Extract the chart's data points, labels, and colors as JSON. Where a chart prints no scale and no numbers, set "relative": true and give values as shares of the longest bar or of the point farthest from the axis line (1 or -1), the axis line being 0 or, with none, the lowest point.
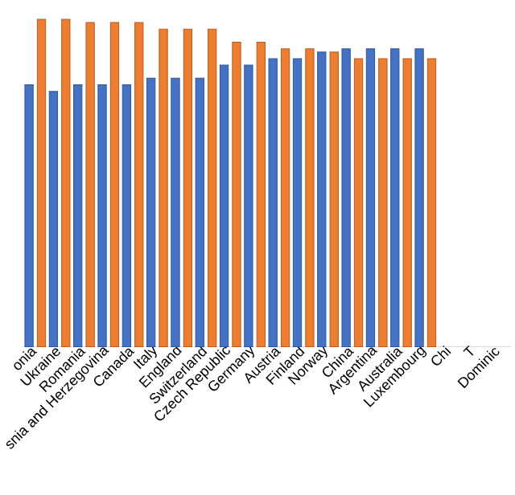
{
  "chart_data": {
    "type": "bar",
    "relative": true,
    "categories": [
      "onia",
      "Ukraine",
      "Romania",
      "snia and Herzegovina",
      "Canada",
      "Italy",
      "England",
      "Switzerland",
      "Czech Republic",
      "Germany",
      "Austria",
      "Finland",
      "Norway",
      "China",
      "Argentina",
      "Australia",
      "Luxembourg",
      "Chi",
      "T",
      "Dominic"
    ],
    "series": [
      {
        "color": "#4472c4",
        "values": [
          0.8,
          0.78,
          0.8,
          0.8,
          0.8,
          0.82,
          0.82,
          0.82,
          0.86,
          0.86,
          0.88,
          0.88,
          0.9,
          0.91,
          0.91,
          0.91,
          0.91,
          null,
          null,
          null
        ]
      },
      {
        "color": "#ed7d31",
        "values": [
          1.0,
          1.0,
          0.99,
          0.99,
          0.99,
          0.97,
          0.97,
          0.97,
          0.93,
          0.93,
          0.91,
          0.91,
          0.9,
          0.88,
          0.88,
          0.88,
          0.88,
          null,
          null,
          null
        ]
      }
    ]
  }
}
